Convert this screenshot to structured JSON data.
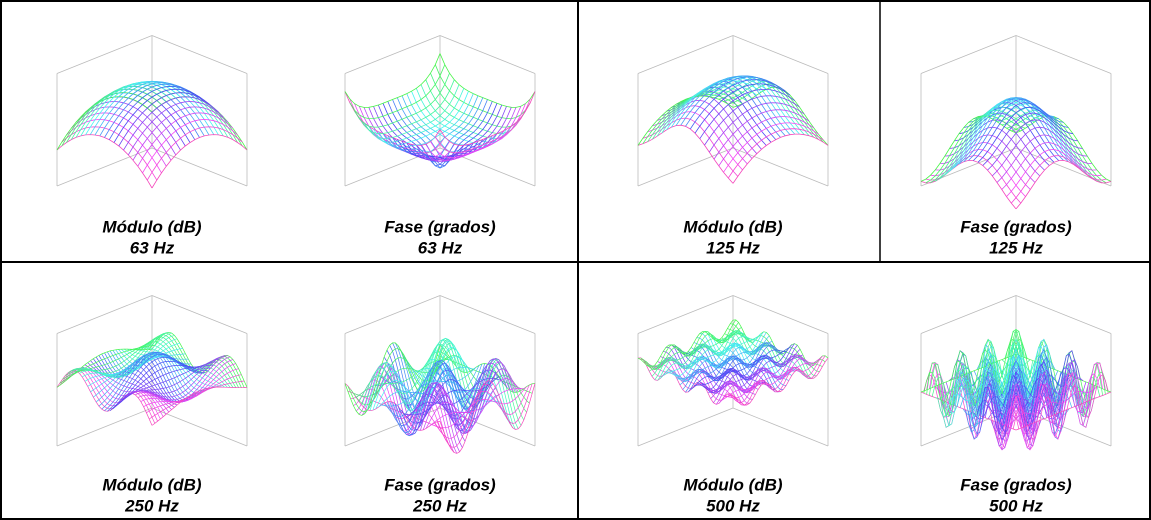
{
  "panels": [
    {
      "caption": "Módulo (dB)",
      "frequency": "63 Hz"
    },
    {
      "caption": "Fase (grados)",
      "frequency": "63 Hz"
    },
    {
      "caption": "Módulo (dB)",
      "frequency": "125 Hz"
    },
    {
      "caption": "Fase (grados)",
      "frequency": "125 Hz"
    },
    {
      "caption": "Módulo (dB)",
      "frequency": "250 Hz"
    },
    {
      "caption": "Fase (grados)",
      "frequency": "250 Hz"
    },
    {
      "caption": "Módulo (dB)",
      "frequency": "500 Hz"
    },
    {
      "caption": "Fase (grados)",
      "frequency": "500 Hz"
    }
  ]
}
